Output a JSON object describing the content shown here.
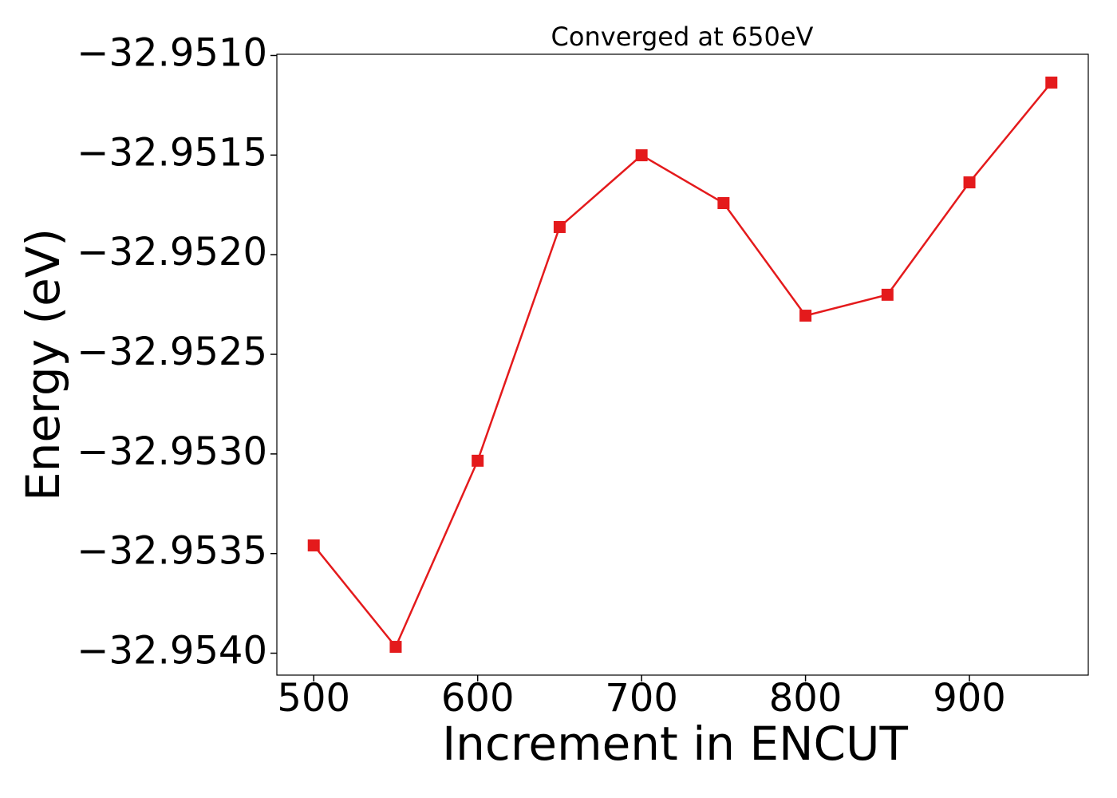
{
  "chart_data": {
    "type": "line",
    "title": "Converged at 650eV",
    "x_label": "Increment in ENCUT",
    "y_label": "Energy (eV)",
    "x": [
      500,
      550,
      600,
      650,
      700,
      750,
      800,
      850,
      900,
      950
    ],
    "series": [
      {
        "name": "Energy",
        "color": "#e41a1c",
        "values": [
          -32.953459,
          -32.953968,
          -32.953034,
          -32.951861,
          -32.951501,
          -32.951741,
          -32.952306,
          -32.952201,
          -32.951637,
          -32.951136
        ]
      }
    ],
    "xlim": [
      477.5,
      972.5
    ],
    "xticks": [
      500,
      600,
      700,
      800,
      900
    ],
    "ylim": [
      -32.95411,
      -32.950994
    ],
    "yticks": [
      {
        "value": -32.951,
        "label": "−32.9510"
      },
      {
        "value": -32.9515,
        "label": "−32.9515"
      },
      {
        "value": -32.952,
        "label": "−32.9520"
      },
      {
        "value": -32.9525,
        "label": "−32.9525"
      },
      {
        "value": -32.953,
        "label": "−32.9530"
      },
      {
        "value": -32.9535,
        "label": "−32.9535"
      },
      {
        "value": -32.954,
        "label": "−32.9540"
      }
    ],
    "grid": false
  }
}
